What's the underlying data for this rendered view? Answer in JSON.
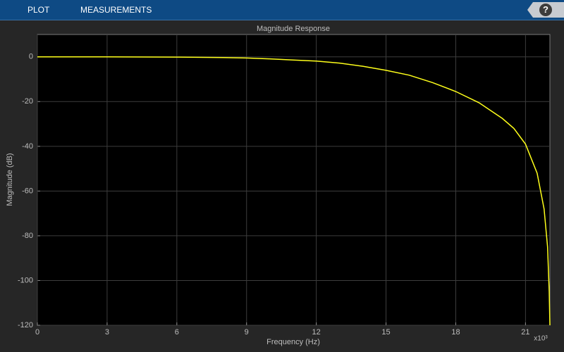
{
  "toolbar": {
    "tabs": [
      "PLOT",
      "MEASUREMENTS"
    ],
    "help": "?"
  },
  "chart_data": {
    "type": "line",
    "title": "Magnitude Response",
    "x_label": "Frequency (Hz)",
    "y_label": "Magnitude (dB)",
    "x_exponent_label": "x10³",
    "x": [
      0,
      3,
      6,
      8,
      9,
      10,
      11,
      12,
      13,
      14,
      15,
      16,
      17,
      18,
      19,
      20,
      20.5,
      21,
      21.5,
      21.8,
      21.95,
      22.02,
      22.05
    ],
    "values": [
      0,
      0,
      -0.1,
      -0.3,
      -0.5,
      -0.9,
      -1.4,
      -1.9,
      -2.8,
      -4.2,
      -6,
      -8.2,
      -11.5,
      -15.5,
      -20.5,
      -27.5,
      -32,
      -39,
      -52,
      -68,
      -85,
      -105,
      -120
    ],
    "color": "#ffff1a",
    "xlim": [
      0,
      22.05
    ],
    "xticks": [
      0,
      3,
      6,
      9,
      12,
      15,
      18,
      21
    ],
    "ylim": [
      -120,
      10
    ],
    "yticks": [
      -120,
      -100,
      -80,
      -60,
      -40,
      -20,
      0
    ],
    "grid": true
  }
}
